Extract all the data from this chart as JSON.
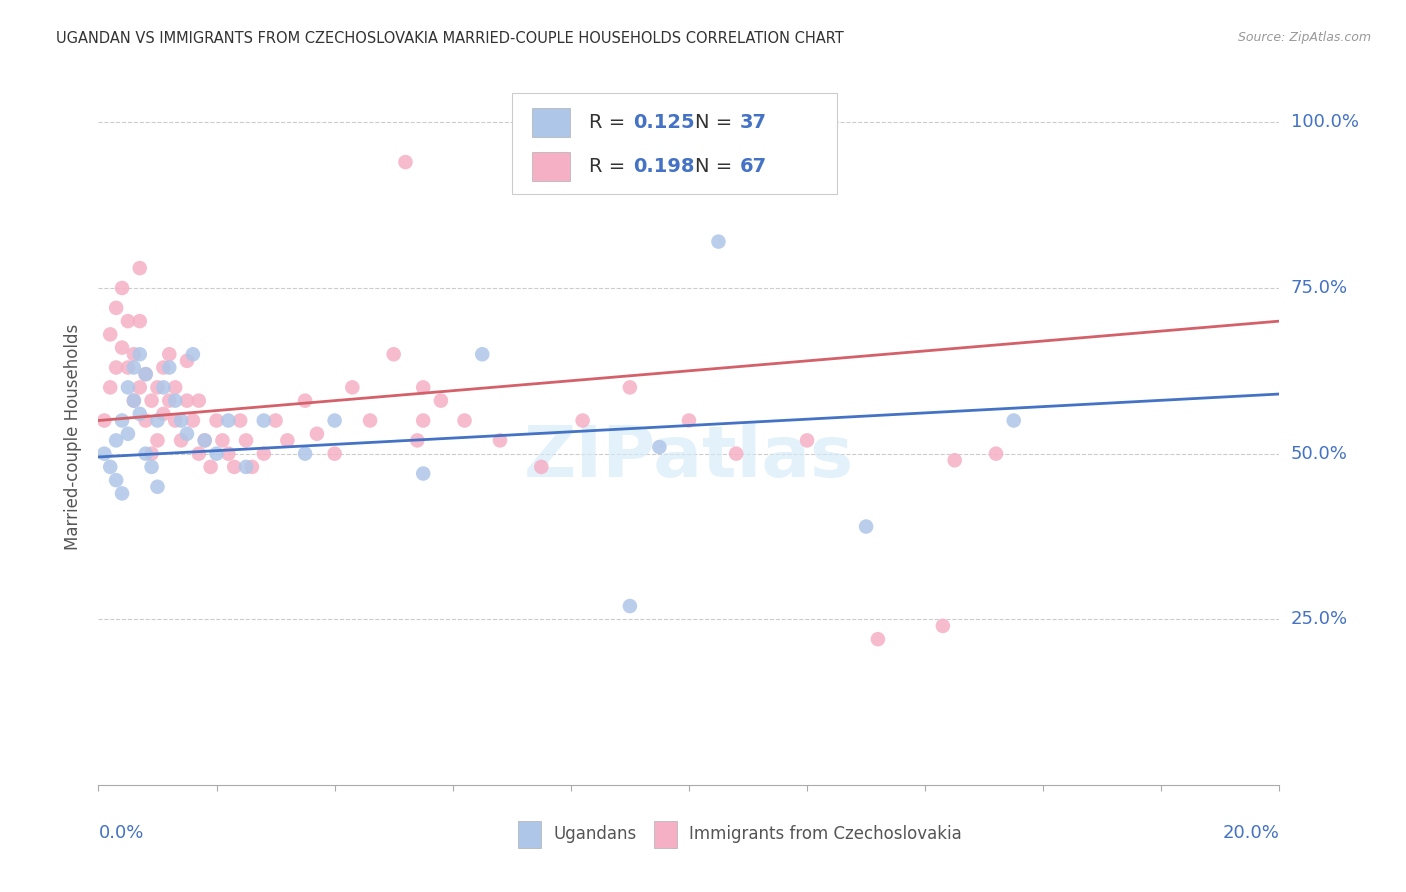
{
  "title": "UGANDAN VS IMMIGRANTS FROM CZECHOSLOVAKIA MARRIED-COUPLE HOUSEHOLDS CORRELATION CHART",
  "source": "Source: ZipAtlas.com",
  "ylabel": "Married-couple Households",
  "ytick_labels": [
    "25.0%",
    "50.0%",
    "75.0%",
    "100.0%"
  ],
  "ytick_values": [
    0.25,
    0.5,
    0.75,
    1.0
  ],
  "xmin": 0.0,
  "xmax": 0.2,
  "ymin": 0.0,
  "ymax": 1.05,
  "blue_color": "#aec6e8",
  "pink_color": "#f5b0c5",
  "blue_line_color": "#4472c4",
  "pink_line_color": "#d4606a",
  "blue_R": 0.125,
  "blue_N": 37,
  "pink_R": 0.198,
  "pink_N": 67,
  "grid_color": "#cccccc",
  "axis_label_color": "#4472c4",
  "title_color": "#333333",
  "source_color": "#999999",
  "blue_x": [
    0.001,
    0.002,
    0.003,
    0.003,
    0.004,
    0.004,
    0.005,
    0.005,
    0.006,
    0.006,
    0.007,
    0.007,
    0.008,
    0.008,
    0.009,
    0.01,
    0.01,
    0.011,
    0.012,
    0.013,
    0.014,
    0.015,
    0.016,
    0.018,
    0.02,
    0.022,
    0.025,
    0.028,
    0.035,
    0.04,
    0.055,
    0.065,
    0.09,
    0.095,
    0.105,
    0.13,
    0.155
  ],
  "blue_y": [
    0.5,
    0.48,
    0.52,
    0.46,
    0.44,
    0.55,
    0.53,
    0.6,
    0.63,
    0.58,
    0.65,
    0.56,
    0.62,
    0.5,
    0.48,
    0.55,
    0.45,
    0.6,
    0.63,
    0.58,
    0.55,
    0.53,
    0.65,
    0.52,
    0.5,
    0.55,
    0.48,
    0.55,
    0.5,
    0.55,
    0.47,
    0.65,
    0.27,
    0.51,
    0.82,
    0.39,
    0.55
  ],
  "pink_x": [
    0.001,
    0.002,
    0.002,
    0.003,
    0.003,
    0.004,
    0.004,
    0.005,
    0.005,
    0.006,
    0.006,
    0.007,
    0.007,
    0.007,
    0.008,
    0.008,
    0.009,
    0.009,
    0.01,
    0.01,
    0.011,
    0.011,
    0.012,
    0.012,
    0.013,
    0.013,
    0.014,
    0.015,
    0.015,
    0.016,
    0.017,
    0.017,
    0.018,
    0.019,
    0.02,
    0.021,
    0.022,
    0.023,
    0.024,
    0.025,
    0.026,
    0.028,
    0.03,
    0.032,
    0.035,
    0.037,
    0.04,
    0.043,
    0.046,
    0.05,
    0.054,
    0.058,
    0.062,
    0.068,
    0.075,
    0.082,
    0.09,
    0.1,
    0.108,
    0.12,
    0.132,
    0.143,
    0.052,
    0.055,
    0.055,
    0.145,
    0.152
  ],
  "pink_y": [
    0.55,
    0.6,
    0.68,
    0.63,
    0.72,
    0.66,
    0.75,
    0.63,
    0.7,
    0.58,
    0.65,
    0.6,
    0.7,
    0.78,
    0.55,
    0.62,
    0.5,
    0.58,
    0.52,
    0.6,
    0.63,
    0.56,
    0.65,
    0.58,
    0.6,
    0.55,
    0.52,
    0.58,
    0.64,
    0.55,
    0.5,
    0.58,
    0.52,
    0.48,
    0.55,
    0.52,
    0.5,
    0.48,
    0.55,
    0.52,
    0.48,
    0.5,
    0.55,
    0.52,
    0.58,
    0.53,
    0.5,
    0.6,
    0.55,
    0.65,
    0.52,
    0.58,
    0.55,
    0.52,
    0.48,
    0.55,
    0.6,
    0.55,
    0.5,
    0.52,
    0.22,
    0.24,
    0.94,
    0.6,
    0.55,
    0.49,
    0.5
  ],
  "blue_trendline": [
    0.495,
    0.59
  ],
  "pink_trendline": [
    0.55,
    0.7
  ]
}
